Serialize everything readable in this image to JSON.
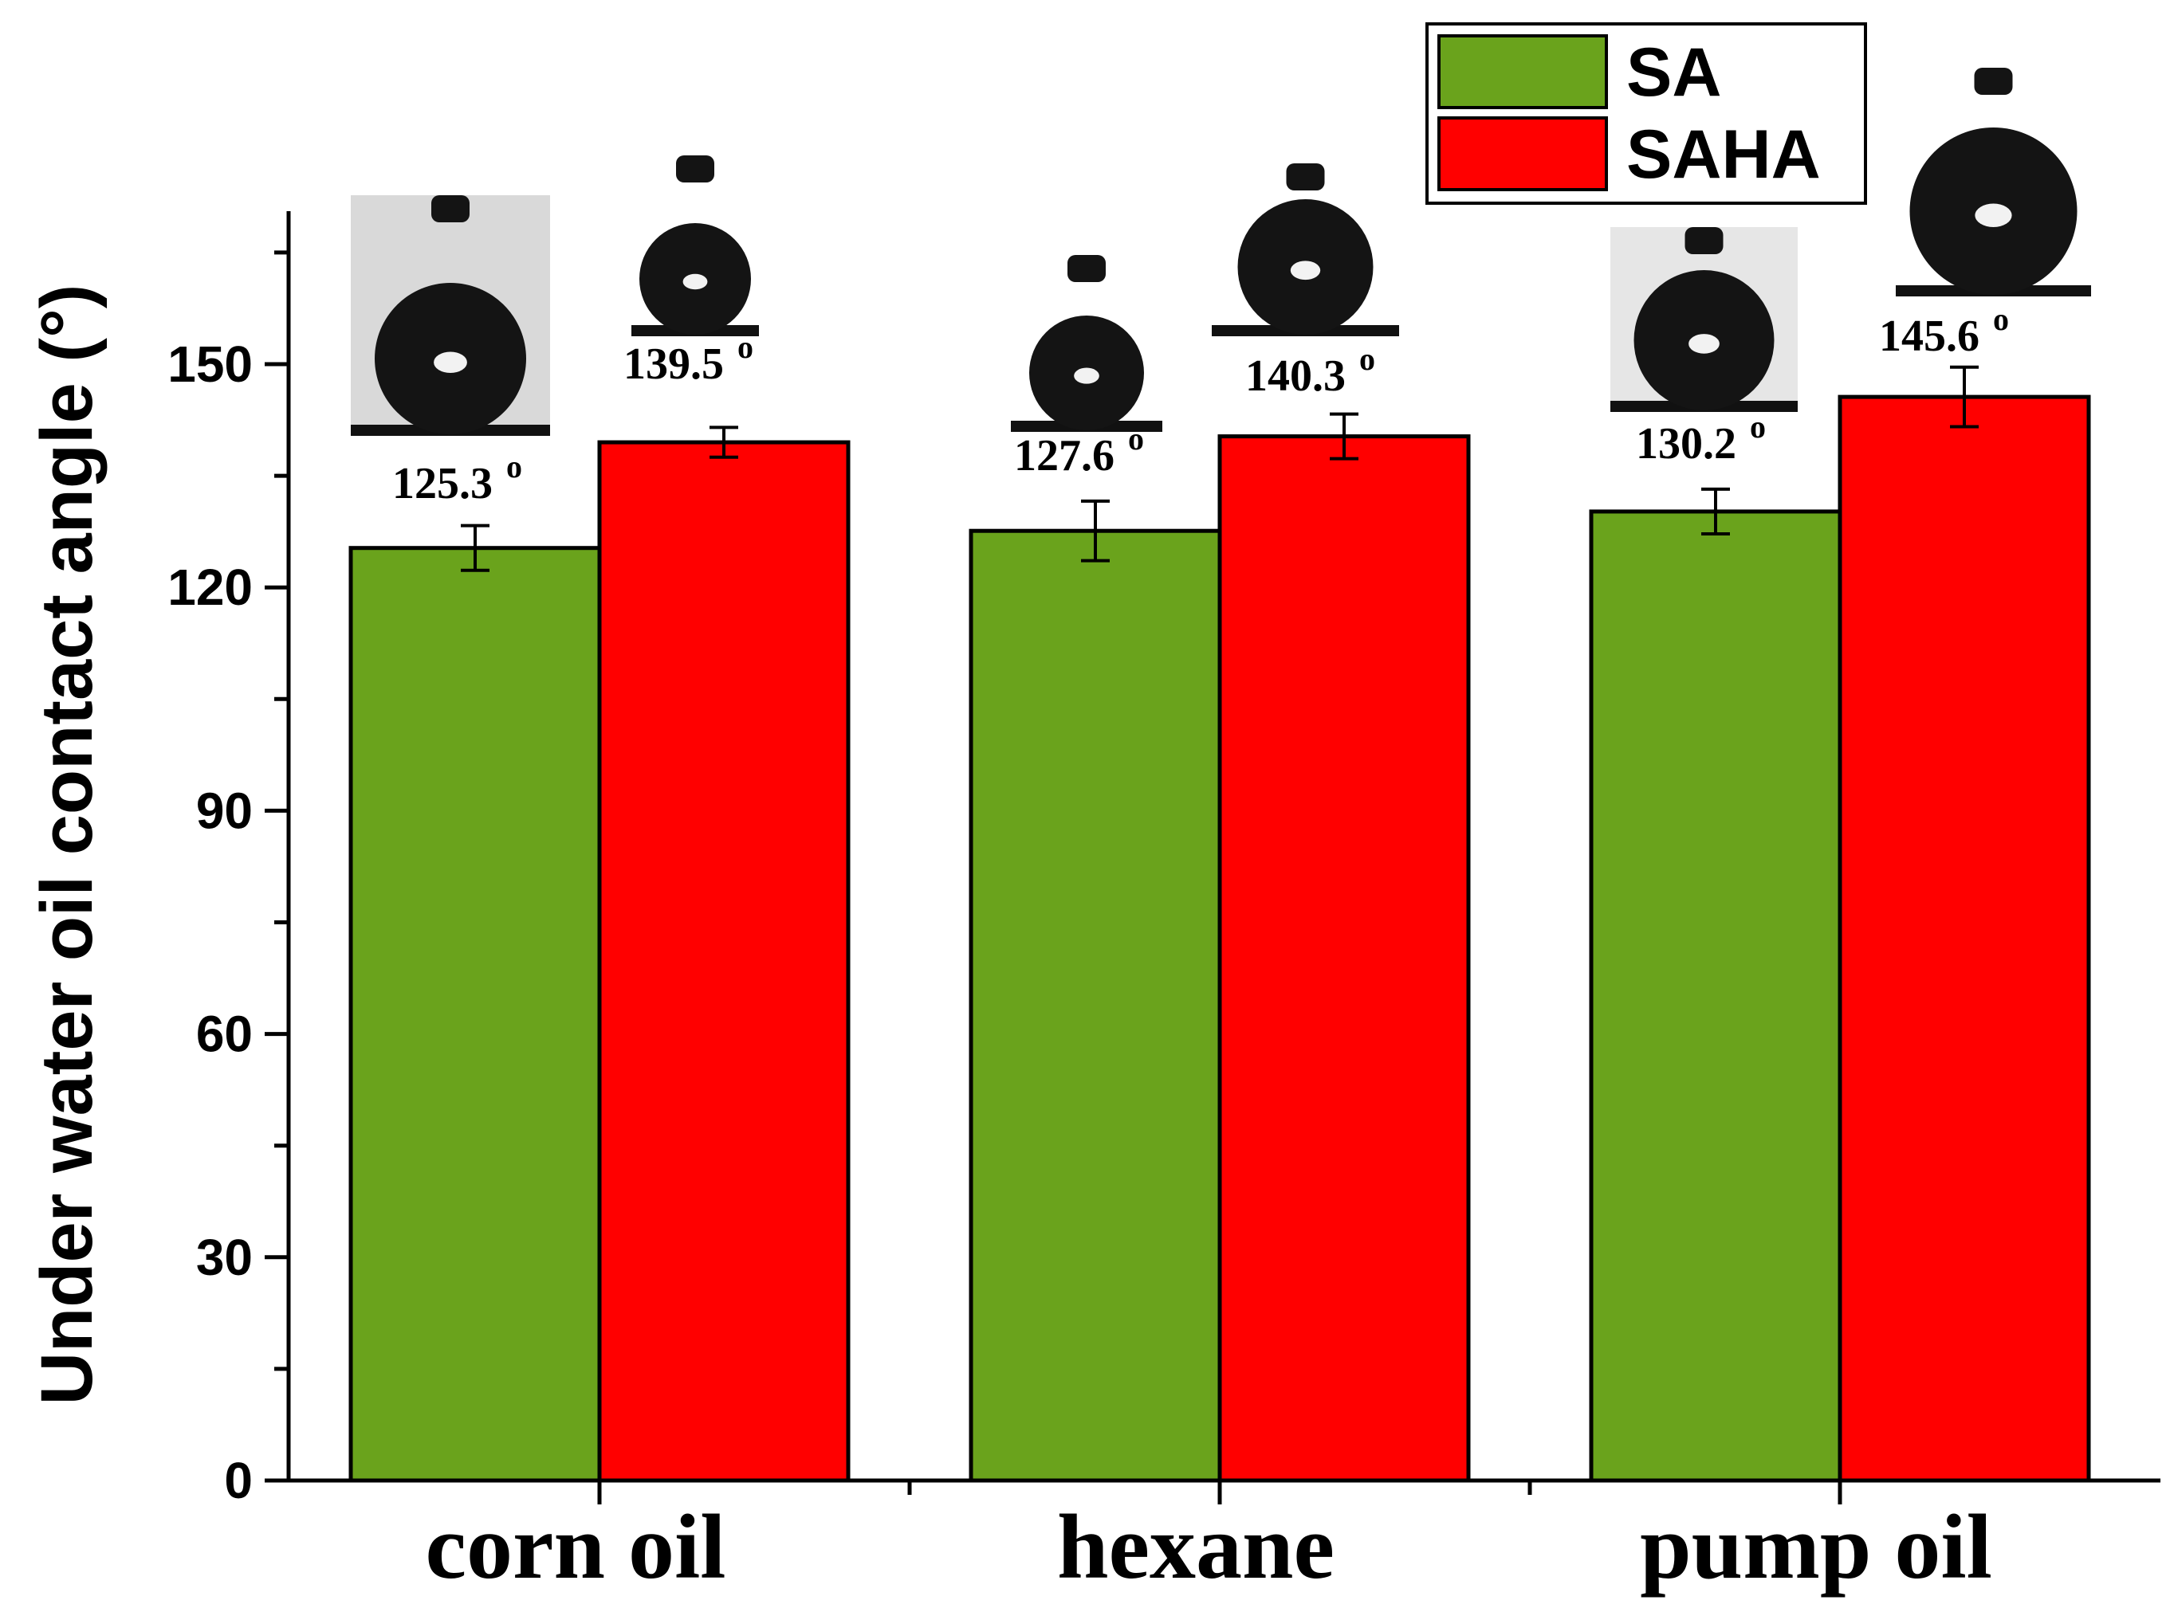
{
  "chart_data": {
    "type": "bar",
    "title": "",
    "xlabel": "",
    "ylabel": "Under water oil contact angle (°)",
    "ylim": [
      0,
      170
    ],
    "yticks": [
      0,
      30,
      60,
      90,
      120,
      150
    ],
    "categories": [
      "corn oil",
      "hexane",
      "pump oil"
    ],
    "series": [
      {
        "name": "SA",
        "color": "#6aa31c",
        "values": [
          125.3,
          127.6,
          130.2
        ],
        "errors": [
          3.0,
          4.0,
          3.0
        ],
        "labels": [
          "125.3",
          "127.6",
          "130.2"
        ]
      },
      {
        "name": "SAHA",
        "color": "#ff0000",
        "values": [
          139.5,
          140.3,
          145.6
        ],
        "errors": [
          2.0,
          3.0,
          4.0
        ],
        "labels": [
          "139.5",
          "140.3",
          "145.6"
        ]
      }
    ],
    "degree_symbol": "o",
    "legend": {
      "position": "top-right",
      "entries": [
        "SA",
        "SAHA"
      ]
    },
    "insets": "water contact angle droplet photographs above each bar"
  }
}
